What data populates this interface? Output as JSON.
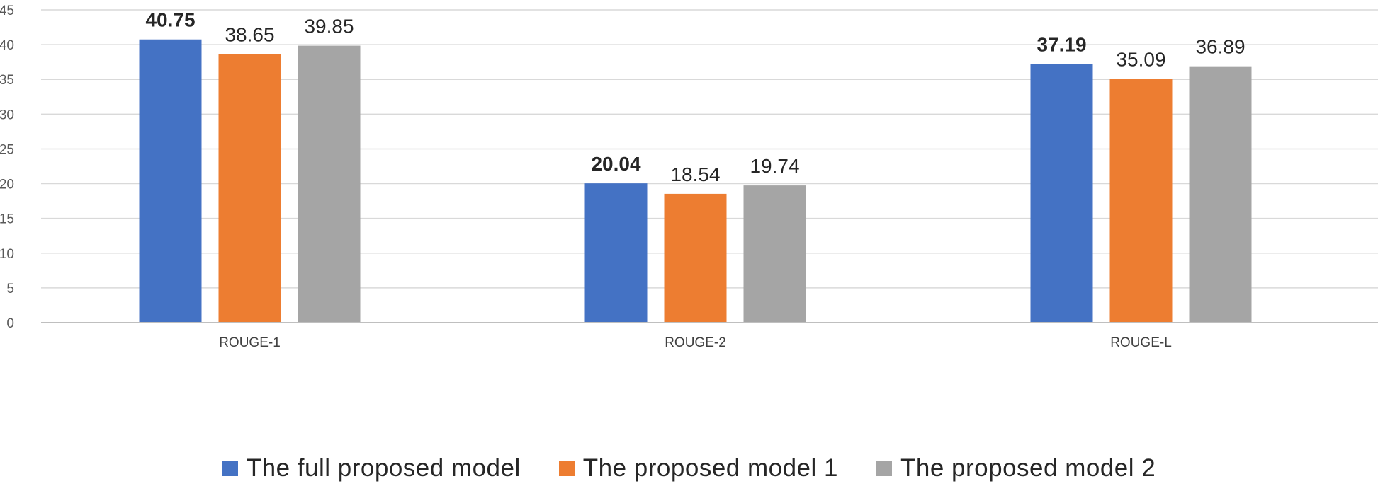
{
  "chart_data": {
    "type": "bar",
    "categories": [
      "ROUGE-1",
      "ROUGE-2",
      "ROUGE-L"
    ],
    "series": [
      {
        "name": "The full proposed model",
        "values": [
          40.75,
          20.04,
          37.19
        ],
        "color": "#4472C4",
        "label_bold": true
      },
      {
        "name": "The proposed model 1",
        "values": [
          38.65,
          18.54,
          35.09
        ],
        "color": "#ED7D31",
        "label_bold": false
      },
      {
        "name": "The proposed model 2",
        "values": [
          39.85,
          19.74,
          36.89
        ],
        "color": "#A5A5A5",
        "label_bold": false
      }
    ],
    "data_labels": [
      [
        "40.75",
        "20.04",
        "37.19"
      ],
      [
        "38.65",
        "18.54",
        "35.09"
      ],
      [
        "39.85",
        "19.74",
        "36.89"
      ]
    ],
    "yticks": [
      "0",
      "5",
      "10",
      "15",
      "20",
      "25",
      "30",
      "35",
      "40",
      "45"
    ],
    "ylim": [
      0,
      45
    ],
    "grid": true,
    "legend_position": "bottom",
    "gridline_color": "#D9D9D9"
  }
}
